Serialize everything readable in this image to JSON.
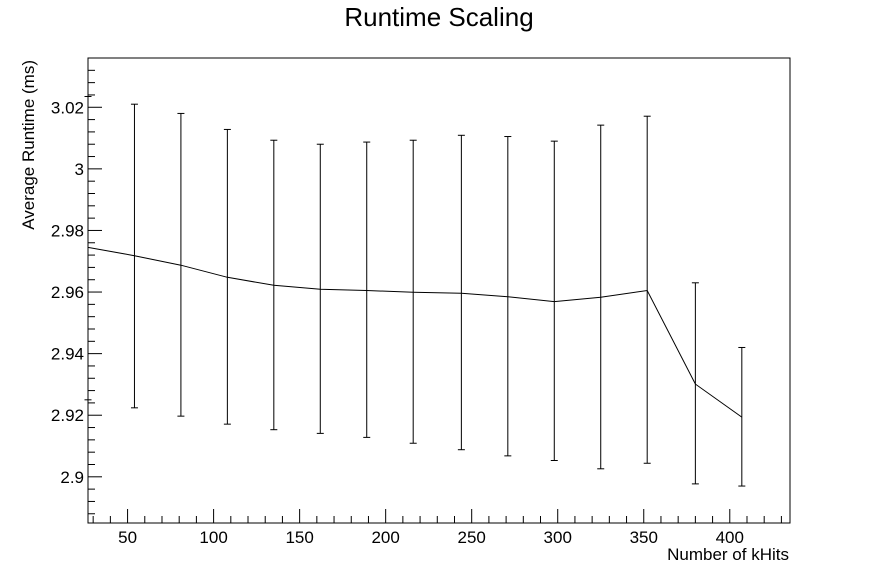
{
  "chart_data": {
    "type": "line",
    "title": "Runtime Scaling",
    "xlabel": "Number of kHits",
    "ylabel": "Average Runtime (ms)",
    "xlim": [
      27,
      435
    ],
    "ylim": [
      2.885,
      3.036
    ],
    "xticks": [
      50,
      100,
      150,
      200,
      250,
      300,
      350,
      400
    ],
    "xtick_labels": [
      "50",
      "100",
      "150",
      "200",
      "250",
      "300",
      "350",
      "400"
    ],
    "yticks": [
      2.9,
      2.92,
      2.94,
      2.96,
      2.98,
      3.0,
      3.02
    ],
    "ytick_labels": [
      "2.9",
      "2.92",
      "2.94",
      "2.96",
      "2.98",
      "3",
      "3.02"
    ],
    "grid": false,
    "legend": "none",
    "series": [
      {
        "x": [
          27,
          54,
          81,
          108,
          135,
          162,
          189,
          216,
          244,
          271,
          298,
          325,
          352,
          380,
          407
        ],
        "y": [
          2.9745,
          2.9718,
          2.9687,
          2.9648,
          2.9622,
          2.9609,
          2.9605,
          2.9599,
          2.9596,
          2.9585,
          2.9569,
          2.9583,
          2.9605,
          2.9301,
          2.9194
        ],
        "y_err_low": [
          2.925,
          2.9224,
          2.9197,
          2.9171,
          2.9153,
          2.9141,
          2.9128,
          2.9109,
          2.9088,
          2.9068,
          2.9053,
          2.9026,
          2.9044,
          2.8977,
          2.897
        ],
        "y_err_high": [
          3.0235,
          3.021,
          3.018,
          3.0128,
          3.0093,
          3.008,
          3.0087,
          3.0093,
          3.0109,
          3.0105,
          3.009,
          3.0142,
          3.0171,
          2.963,
          2.942
        ]
      }
    ],
    "colors": {
      "line": "#000000",
      "frame": "#000000",
      "background": "#ffffff"
    }
  }
}
